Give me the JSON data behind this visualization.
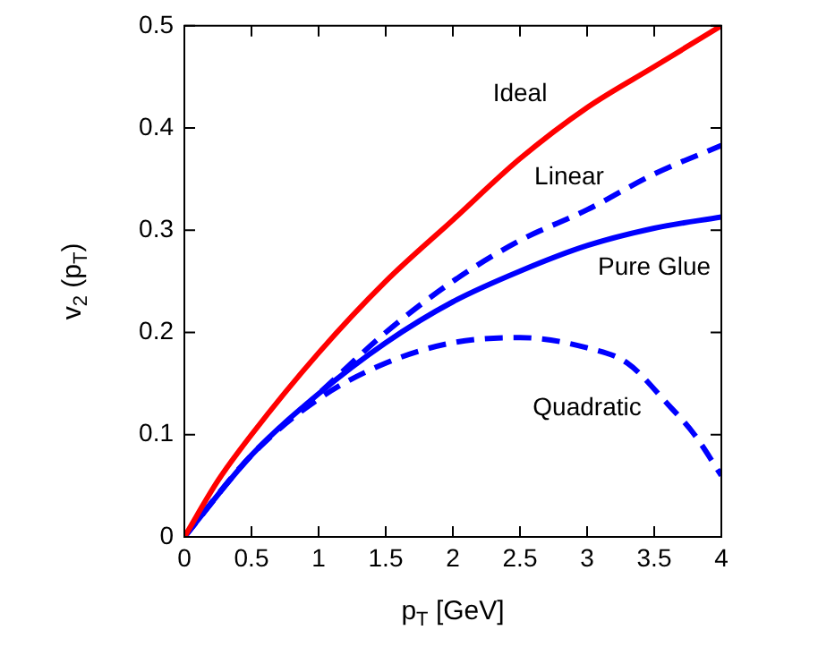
{
  "chart_data": {
    "type": "line",
    "xlabel": "p$_{T}$ [GeV]",
    "ylabel": "v$_{2}$ (p$_{T}$)",
    "xlim": [
      0,
      4
    ],
    "xticks": [
      0,
      0.5,
      1,
      1.5,
      2,
      2.5,
      3,
      3.5,
      4
    ],
    "ylim": [
      0,
      0.5
    ],
    "yticks": [
      0,
      0.1,
      0.2,
      0.3,
      0.4,
      0.5
    ],
    "grid": false,
    "legend": false,
    "marker": "none",
    "series": [
      {
        "name": "Ideal",
        "color": "#ff0000",
        "line_style": "solid",
        "x": [
          0,
          0.25,
          0.5,
          1,
          1.5,
          2,
          2.5,
          3,
          3.5,
          4
        ],
        "values": [
          0,
          0.055,
          0.1,
          0.18,
          0.25,
          0.31,
          0.37,
          0.42,
          0.46,
          0.5
        ]
      },
      {
        "name": "Linear",
        "color": "#0000ff",
        "line_style": "dashed",
        "x": [
          0,
          0.5,
          1,
          1.5,
          2,
          2.5,
          3,
          3.5,
          4
        ],
        "values": [
          0,
          0.08,
          0.14,
          0.2,
          0.25,
          0.29,
          0.32,
          0.355,
          0.383
        ]
      },
      {
        "name": "Pure Glue",
        "color": "#0000ff",
        "line_style": "solid",
        "x": [
          0,
          0.5,
          1,
          1.5,
          2,
          2.5,
          3,
          3.5,
          4
        ],
        "values": [
          0,
          0.08,
          0.14,
          0.19,
          0.23,
          0.26,
          0.285,
          0.302,
          0.313
        ]
      },
      {
        "name": "Quadratic",
        "color": "#0000ff",
        "line_style": "dashed",
        "x": [
          0,
          0.5,
          1,
          1.5,
          2,
          2.5,
          3,
          3.3,
          3.6,
          3.8,
          4
        ],
        "values": [
          0,
          0.08,
          0.135,
          0.17,
          0.19,
          0.195,
          0.185,
          0.17,
          0.13,
          0.1,
          0.06
        ]
      }
    ]
  }
}
